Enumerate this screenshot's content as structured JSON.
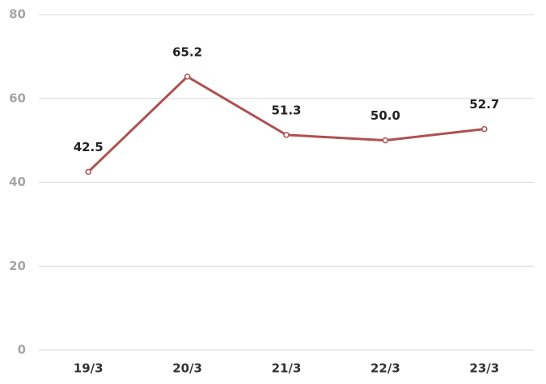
{
  "chart_data": {
    "type": "line",
    "categories": [
      "19/3",
      "20/3",
      "21/3",
      "22/3",
      "23/3"
    ],
    "values": [
      42.5,
      65.2,
      51.3,
      50.0,
      52.7
    ],
    "value_labels": [
      "42.5",
      "65.2",
      "51.3",
      "50.0",
      "52.7"
    ],
    "color": "#ad5151",
    "ylim": [
      0,
      80
    ],
    "yticks": [
      0,
      20,
      40,
      60,
      80
    ],
    "grid": true
  }
}
